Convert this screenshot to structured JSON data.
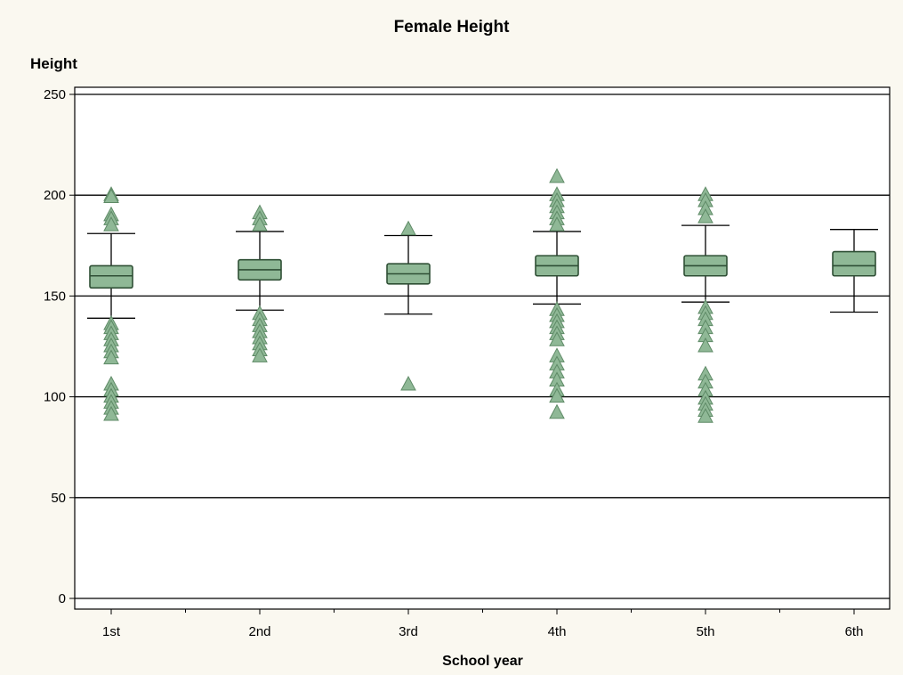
{
  "chart_data": {
    "type": "box",
    "title": "Female Height",
    "xlabel": "School year",
    "ylabel": "Height",
    "ylim": [
      0,
      250
    ],
    "yticks": [
      0,
      50,
      100,
      150,
      200,
      250
    ],
    "grid": true,
    "categories": [
      "1st",
      "2nd",
      "3rd",
      "4th",
      "5th",
      "6th"
    ],
    "boxes": [
      {
        "category": "1st",
        "whisker_low": 139,
        "q1": 154,
        "median": 160,
        "q3": 165,
        "whisker_high": 181,
        "outliers": [
          200,
          199,
          190,
          188,
          185,
          136,
          134,
          131,
          128,
          125,
          122,
          119,
          106,
          103,
          100,
          97,
          94,
          91
        ]
      },
      {
        "category": "2nd",
        "whisker_low": 143,
        "q1": 158,
        "median": 163,
        "q3": 168,
        "whisker_high": 182,
        "outliers": [
          191,
          188,
          185,
          141,
          138,
          135,
          132,
          129,
          126,
          123,
          120
        ]
      },
      {
        "category": "3rd",
        "whisker_low": 141,
        "q1": 156,
        "median": 161,
        "q3": 166,
        "whisker_high": 180,
        "outliers": [
          183,
          106
        ]
      },
      {
        "category": "4th",
        "whisker_low": 146,
        "q1": 160,
        "median": 165,
        "q3": 170,
        "whisker_high": 182,
        "outliers": [
          209,
          200,
          197,
          194,
          191,
          188,
          185,
          143,
          140,
          137,
          134,
          131,
          128,
          120,
          116,
          112,
          108,
          103,
          100,
          92
        ]
      },
      {
        "category": "5th",
        "whisker_low": 147,
        "q1": 160,
        "median": 165,
        "q3": 170,
        "whisker_high": 185,
        "outliers": [
          200,
          197,
          193,
          189,
          144,
          141,
          138,
          134,
          130,
          125,
          111,
          107,
          103,
          99,
          96,
          93,
          90
        ]
      },
      {
        "category": "6th",
        "whisker_low": 142,
        "q1": 160,
        "median": 165,
        "q3": 172,
        "whisker_high": 183,
        "outliers": []
      }
    ],
    "colors": {
      "box_fill": "#8fb896",
      "box_stroke": "#2f4f35",
      "outlier_fill": "#8fb896",
      "outlier_stroke": "#5e8a66",
      "grid": "#000000",
      "background": "#faf8f0",
      "plot_background": "#ffffff"
    }
  }
}
